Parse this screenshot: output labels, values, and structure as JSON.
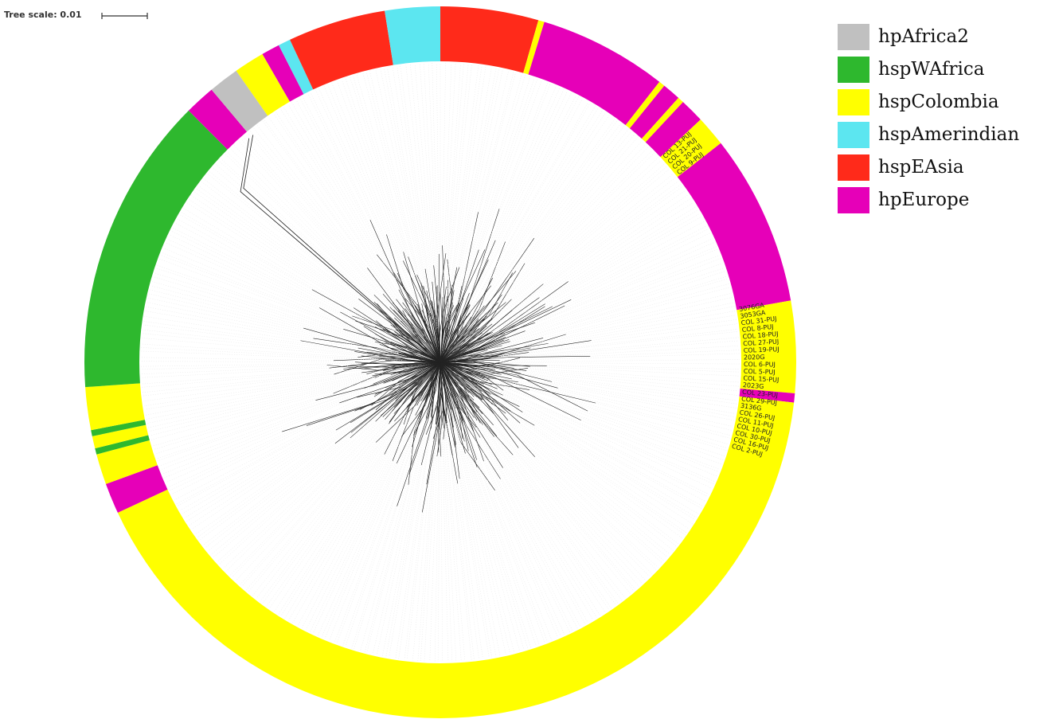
{
  "tree_scale": "Tree scale: 0.01",
  "legend": [
    {
      "name": "hpAfrica2",
      "color": "#c0c0c0"
    },
    {
      "name": "hspWAfrica",
      "color": "#2eb82e"
    },
    {
      "name": "hspColombia",
      "color": "#ffff00"
    },
    {
      "name": "hspAmerindian",
      "color": "#5ce6f0"
    },
    {
      "name": "hspEAsia",
      "color": "#ff2a1a"
    },
    {
      "name": "hpEurope",
      "color": "#e600b8"
    }
  ],
  "leaf_labels": [
    "3076GA",
    "3053GA",
    "COL 31-PUJ",
    "COL 8-PUJ",
    "COL 18-PUJ",
    "COL 27-PUJ",
    "COL 19-PUJ",
    "2020G",
    "COL 6-PUJ",
    "COL 5-PUJ",
    "COL 15-PUJ",
    "2023G",
    "COL 23-PUJ",
    "COL 29-PUJ",
    "3136G",
    "COL 26-PUJ",
    "COL 11-PUJ",
    "COL 10-PUJ",
    "COL 30-PUJ",
    "COL 16-PUJ",
    "COL 2-PUJ"
  ],
  "upper_labels": [
    "COL 13-PUJ",
    "COL 21-PUJ",
    "COL 20-PUJ",
    "COL 9-PUJ"
  ]
}
